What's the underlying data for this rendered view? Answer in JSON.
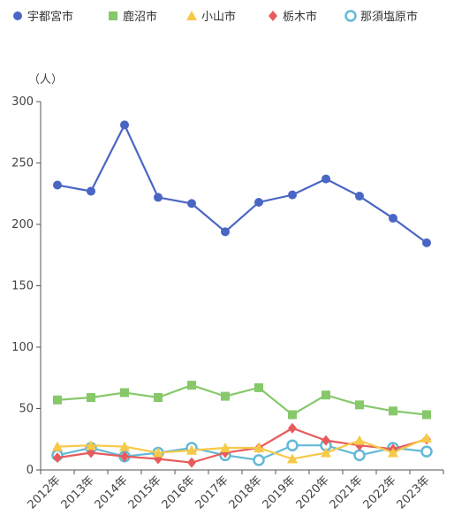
{
  "chart_data": {
    "type": "line",
    "title": "",
    "xlabel": "",
    "ylabel": "",
    "y_unit_label": "（人）",
    "categories": [
      "2012年",
      "2013年",
      "2014年",
      "2015年",
      "2016年",
      "2017年",
      "2018年",
      "2019年",
      "2020年",
      "2021年",
      "2022年",
      "2023年"
    ],
    "ylim": [
      0,
      300
    ],
    "y_ticks": [
      0,
      50,
      100,
      150,
      200,
      250,
      300
    ],
    "grid": false,
    "legend_position": "top",
    "series": [
      {
        "name": "宇都宮市",
        "color": "#4a66c4",
        "marker": "circle",
        "values": [
          232,
          227,
          281,
          222,
          217,
          194,
          218,
          224,
          237,
          223,
          205,
          185
        ]
      },
      {
        "name": "鹿沼市",
        "color": "#86c86a",
        "marker": "square",
        "values": [
          57,
          59,
          63,
          59,
          69,
          60,
          67,
          45,
          61,
          53,
          48,
          45
        ]
      },
      {
        "name": "小山市",
        "color": "#f7c948",
        "marker": "triangle",
        "values": [
          19,
          20,
          19,
          14,
          16,
          18,
          18,
          9,
          14,
          24,
          14,
          26
        ]
      },
      {
        "name": "栃木市",
        "color": "#e85b5b",
        "marker": "diamond",
        "values": [
          10,
          14,
          11,
          9,
          6,
          14,
          18,
          34,
          24,
          20,
          17,
          25
        ]
      },
      {
        "name": "那須塩原市",
        "color": "#63b9d6",
        "marker": "hollow-circle",
        "values": [
          12,
          18,
          11,
          14,
          18,
          12,
          8,
          20,
          20,
          12,
          18,
          15
        ]
      }
    ]
  }
}
